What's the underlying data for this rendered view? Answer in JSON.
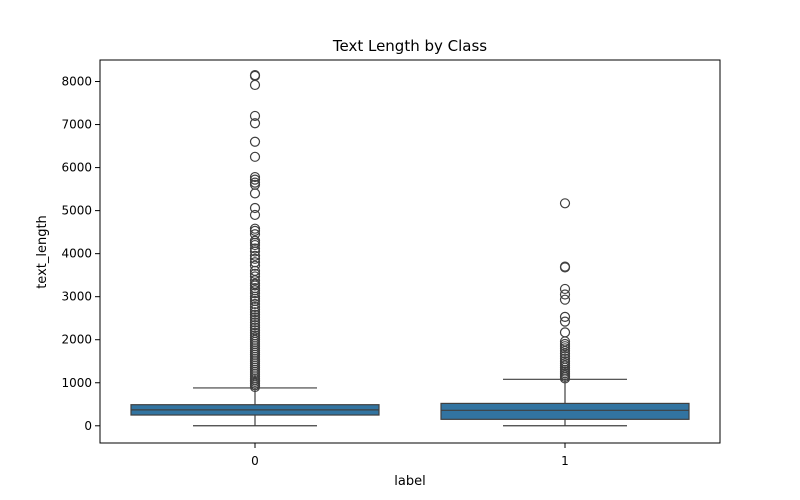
{
  "chart_data": {
    "type": "box",
    "title": "Text Length by Class",
    "xlabel": "label",
    "ylabel": "text_length",
    "ylim": [
      -400,
      8500
    ],
    "yticks": [
      0,
      1000,
      2000,
      3000,
      4000,
      5000,
      6000,
      7000,
      8000
    ],
    "categories": [
      "0",
      "1"
    ],
    "box_color": "#3274a1",
    "line_color": "#3f3f3f",
    "grid": false,
    "series": [
      {
        "category": "0",
        "min": 0,
        "q1": 250,
        "median": 370,
        "q3": 490,
        "max": 880,
        "outliers": [
          8150,
          8130,
          7920,
          7200,
          7030,
          6600,
          6250,
          5780,
          5720,
          5650,
          5600,
          5400,
          5060,
          4900,
          4580,
          4530,
          4450,
          4300,
          4250,
          4200,
          4120,
          4050,
          3950,
          3880,
          3800,
          3720,
          3600,
          3530,
          3470,
          3380,
          3300,
          3260,
          3200,
          3150,
          3080,
          3000,
          2950,
          2900,
          2830,
          2760,
          2700,
          2640,
          2580,
          2520,
          2460,
          2400,
          2340,
          2280,
          2220,
          2160,
          2100,
          2050,
          2000,
          1950,
          1900,
          1850,
          1800,
          1750,
          1700,
          1650,
          1600,
          1550,
          1500,
          1450,
          1400,
          1350,
          1300,
          1250,
          1200,
          1150,
          1100,
          1060,
          1020,
          980,
          940,
          900
        ]
      },
      {
        "category": "1",
        "min": 0,
        "q1": 150,
        "median": 360,
        "q3": 520,
        "max": 1080,
        "outliers": [
          5170,
          3700,
          3680,
          3180,
          3050,
          2930,
          2530,
          2420,
          2170,
          1960,
          1900,
          1850,
          1800,
          1740,
          1680,
          1620,
          1560,
          1500,
          1450,
          1400,
          1350,
          1300,
          1260,
          1220,
          1180,
          1140,
          1100
        ]
      }
    ]
  }
}
